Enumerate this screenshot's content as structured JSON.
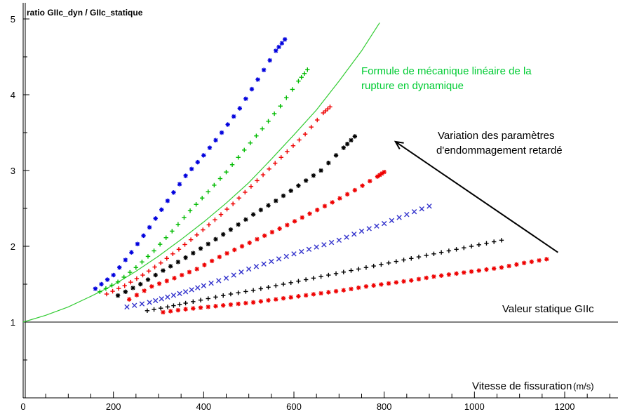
{
  "chart_data": {
    "type": "scatter",
    "title": "",
    "ylabel": "ratio GIIc_dyn / GIIc_statique",
    "xlabel": "Vitesse de fissuration",
    "xlabel_unit": "(m/s)",
    "xlim": [
      0,
      1300
    ],
    "ylim": [
      0,
      5
    ],
    "x_ticks": [
      0,
      200,
      400,
      600,
      800,
      1000,
      1200
    ],
    "y_ticks": [
      1,
      2,
      3,
      4,
      5
    ],
    "grid": false,
    "reference_line": {
      "y": 1,
      "label": "Valeur statique GIIc",
      "color": "#000000"
    },
    "annotations": [
      {
        "lines": [
          "Formule de mécanique linéaire de la",
          "rupture en dynamique"
        ],
        "color": "#00cc33"
      },
      {
        "lines": [
          "Variation des paramètres",
          "d'endommagement retardé"
        ],
        "color": "#000000",
        "arrow": {
          "from": [
            1185,
            1.92
          ],
          "to": [
            825,
            3.38
          ]
        }
      }
    ],
    "curve": {
      "name": "Formule de mécanique linéaire de la rupture en dynamique",
      "color": "#33cc33",
      "x": [
        0,
        50,
        100,
        150,
        200,
        250,
        300,
        350,
        400,
        450,
        500,
        550,
        600,
        650,
        700,
        750,
        790
      ],
      "y": [
        1.0,
        1.09,
        1.2,
        1.34,
        1.49,
        1.67,
        1.87,
        2.09,
        2.32,
        2.57,
        2.84,
        3.15,
        3.47,
        3.8,
        4.18,
        4.58,
        4.95
      ]
    },
    "series": [
      {
        "color": "#0000dd",
        "marker": "asterisk",
        "x": [
          160,
          200,
          240,
          280,
          320,
          360,
          400,
          440,
          480,
          520,
          560,
          580
        ],
        "y": [
          1.44,
          1.62,
          1.92,
          2.25,
          2.6,
          2.93,
          3.2,
          3.5,
          3.82,
          4.2,
          4.58,
          4.73
        ]
      },
      {
        "color": "#00bb00",
        "marker": "plus",
        "x": [
          170,
          210,
          250,
          290,
          330,
          370,
          410,
          450,
          490,
          530,
          570,
          610,
          630
        ],
        "y": [
          1.4,
          1.53,
          1.72,
          1.94,
          2.2,
          2.47,
          2.72,
          2.98,
          3.27,
          3.55,
          3.85,
          4.18,
          4.33
        ]
      },
      {
        "color": "#ee0000",
        "marker": "plus",
        "x": [
          185,
          225,
          265,
          305,
          345,
          385,
          425,
          465,
          505,
          545,
          585,
          625,
          665,
          680
        ],
        "y": [
          1.37,
          1.48,
          1.62,
          1.78,
          1.96,
          2.15,
          2.35,
          2.56,
          2.79,
          3.02,
          3.25,
          3.48,
          3.76,
          3.84
        ]
      },
      {
        "color": "#000000",
        "marker": "asterisk",
        "x": [
          210,
          260,
          310,
          360,
          410,
          460,
          510,
          560,
          610,
          660,
          710,
          735
        ],
        "y": [
          1.35,
          1.5,
          1.68,
          1.85,
          2.03,
          2.22,
          2.42,
          2.6,
          2.8,
          3.0,
          3.3,
          3.45
        ]
      },
      {
        "color": "#ee0000",
        "marker": "asterisk",
        "x": [
          235,
          285,
          335,
          385,
          435,
          485,
          535,
          585,
          635,
          685,
          735,
          785,
          800
        ],
        "y": [
          1.3,
          1.47,
          1.58,
          1.7,
          1.86,
          2.0,
          2.14,
          2.28,
          2.43,
          2.58,
          2.74,
          2.92,
          2.98
        ]
      },
      {
        "color": "#3333cc",
        "marker": "x",
        "x": [
          230,
          280,
          320,
          360,
          400,
          450,
          500,
          550,
          600,
          650,
          700,
          750,
          800,
          850,
          900
        ],
        "y": [
          1.2,
          1.26,
          1.33,
          1.4,
          1.48,
          1.58,
          1.7,
          1.8,
          1.9,
          1.99,
          2.08,
          2.2,
          2.3,
          2.42,
          2.53
        ]
      },
      {
        "color": "#000000",
        "marker": "plus",
        "x": [
          275,
          320,
          360,
          410,
          460,
          510,
          560,
          610,
          660,
          710,
          760,
          810,
          860,
          910,
          960,
          1010,
          1060
        ],
        "y": [
          1.15,
          1.2,
          1.25,
          1.31,
          1.37,
          1.42,
          1.48,
          1.54,
          1.6,
          1.66,
          1.72,
          1.78,
          1.84,
          1.9,
          1.96,
          2.02,
          2.08
        ]
      },
      {
        "color": "#ee0000",
        "marker": "asterisk",
        "x": [
          310,
          360,
          410,
          460,
          510,
          560,
          610,
          660,
          710,
          760,
          810,
          860,
          910,
          960,
          1010,
          1060,
          1110,
          1160
        ],
        "y": [
          1.13,
          1.17,
          1.2,
          1.23,
          1.26,
          1.3,
          1.34,
          1.38,
          1.42,
          1.47,
          1.51,
          1.55,
          1.6,
          1.64,
          1.68,
          1.72,
          1.78,
          1.83
        ]
      }
    ]
  }
}
